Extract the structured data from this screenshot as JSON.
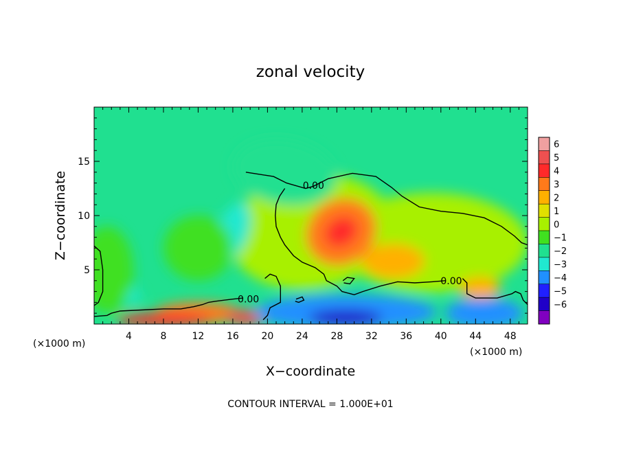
{
  "chart_data": {
    "type": "heatmap",
    "title": "zonal velocity",
    "xlabel": "X−coordinate",
    "ylabel": "Z−coordinate",
    "x_unit_left": "(×1000 m)",
    "x_unit_right": "(×1000 m)",
    "footer": "CONTOUR INTERVAL = 1.000E+01",
    "xlim": [
      0,
      50
    ],
    "ylim": [
      0,
      20
    ],
    "x_ticks": [
      4,
      8,
      12,
      16,
      20,
      24,
      28,
      32,
      36,
      40,
      44,
      48
    ],
    "x_tick_labels": [
      "4",
      "8",
      "12",
      "16",
      "20",
      "24",
      "28",
      "32",
      "36",
      "40",
      "44",
      "48"
    ],
    "y_ticks": [
      5,
      10,
      15
    ],
    "y_tick_labels": [
      "5",
      "10",
      "15"
    ],
    "colorbar": {
      "levels": [
        6,
        5,
        4,
        3,
        2,
        1,
        0,
        -1,
        -2,
        -3,
        -4,
        -5,
        -6
      ],
      "labels": [
        "6",
        "5",
        "4",
        "3",
        "2",
        "1",
        "0",
        "−1",
        "−2",
        "−3",
        "−4",
        "−5",
        "−6"
      ],
      "colors": [
        "#f0a0a0",
        "#ee5050",
        "#ff2a2a",
        "#ff7a1a",
        "#ffb000",
        "#e0e000",
        "#a8f000",
        "#40e020",
        "#20e090",
        "#20e8d0",
        "#2090ff",
        "#2020ff",
        "#2000c8",
        "#8000c0"
      ]
    },
    "contour_labels": [
      {
        "text": "0.00",
        "x": 25.3,
        "y": 12.8
      },
      {
        "text": "0.00",
        "x": 17.8,
        "y": 2.3
      },
      {
        "text": "0.00",
        "x": 41.2,
        "y": 4.0
      }
    ],
    "background_value": -1.3,
    "blobs": [
      {
        "x": 25,
        "y": 8.5,
        "rx": 9.5,
        "ry": 5.3,
        "v": 0.6,
        "rot": -8
      },
      {
        "x": 39,
        "y": 7.5,
        "rx": 11,
        "ry": 4.6,
        "v": 0.45,
        "rot": 0
      },
      {
        "x": 28.5,
        "y": 8.5,
        "rx": 4.2,
        "ry": 3.0,
        "v": 3.5,
        "rot": -35
      },
      {
        "x": 28.5,
        "y": 8.5,
        "rx": 2.0,
        "ry": 1.3,
        "v": 5.0,
        "rot": -35
      },
      {
        "x": 34.5,
        "y": 5.8,
        "rx": 3.6,
        "ry": 1.6,
        "v": 2.5,
        "rot": 0
      },
      {
        "x": 44.5,
        "y": 3.3,
        "rx": 2.4,
        "ry": 1.0,
        "v": 2.8,
        "rot": 0
      },
      {
        "x": 12,
        "y": 1.0,
        "rx": 5,
        "ry": 1.0,
        "v": 3.5,
        "rot": 0
      },
      {
        "x": 8,
        "y": 0.4,
        "rx": 5.5,
        "ry": 0.6,
        "v": 4.6,
        "rot": 0
      },
      {
        "x": 17.5,
        "y": 0.6,
        "rx": 2.2,
        "ry": 0.7,
        "v": 5.4,
        "rot": 0
      },
      {
        "x": 29,
        "y": 1.1,
        "rx": 10.5,
        "ry": 1.6,
        "v": -3.5,
        "rot": 0
      },
      {
        "x": 29,
        "y": 0.6,
        "rx": 4.2,
        "ry": 0.7,
        "v": -5.5,
        "rot": 0
      },
      {
        "x": 45,
        "y": 1.0,
        "rx": 4.5,
        "ry": 1.4,
        "v": -3.0,
        "rot": 0
      },
      {
        "x": 16,
        "y": 8.5,
        "rx": 1.8,
        "ry": 2.8,
        "v": -2.0,
        "rot": 20
      },
      {
        "x": 3.8,
        "y": 2.6,
        "rx": 1.6,
        "ry": 0.7,
        "v": -2.5,
        "rot": 0
      },
      {
        "x": 12,
        "y": 7,
        "rx": 4,
        "ry": 3,
        "v": -0.2,
        "rot": 0
      },
      {
        "x": 1.5,
        "y": 5,
        "rx": 3,
        "ry": 4,
        "v": -0.5,
        "rot": 0
      },
      {
        "x": 22,
        "y": 14,
        "rx": 6,
        "ry": 3,
        "v": -1.8,
        "rot": 10
      }
    ],
    "contour_zero": [
      [
        [
          17.5,
          14.0
        ],
        [
          20.7,
          13.6
        ],
        [
          22.2,
          13.0
        ],
        [
          24.4,
          12.5
        ],
        [
          25.3,
          12.7
        ],
        [
          27.0,
          13.4
        ],
        [
          29.8,
          13.9
        ],
        [
          32.5,
          13.6
        ],
        [
          34.3,
          12.6
        ],
        [
          35.5,
          11.8
        ],
        [
          37.5,
          10.8
        ],
        [
          40.0,
          10.4
        ],
        [
          42.5,
          10.2
        ],
        [
          45.0,
          9.8
        ],
        [
          47.0,
          9.0
        ],
        [
          48.5,
          8.1
        ],
        [
          49.3,
          7.5
        ],
        [
          50.0,
          7.3
        ]
      ],
      [
        [
          22.0,
          12.5
        ],
        [
          21.4,
          11.8
        ],
        [
          21.0,
          11.0
        ],
        [
          20.9,
          10.0
        ],
        [
          21.0,
          9.0
        ],
        [
          21.5,
          8.0
        ],
        [
          22.0,
          7.3
        ],
        [
          23.0,
          6.3
        ],
        [
          24.0,
          5.7
        ],
        [
          25.5,
          5.2
        ],
        [
          26.5,
          4.6
        ],
        [
          26.8,
          4.0
        ],
        [
          28.0,
          3.5
        ],
        [
          28.6,
          3.0
        ],
        [
          30.0,
          2.7
        ],
        [
          31.0,
          3.0
        ],
        [
          33.0,
          3.5
        ],
        [
          35.0,
          3.9
        ],
        [
          37.0,
          3.8
        ],
        [
          39.0,
          3.9
        ],
        [
          40.5,
          4.0
        ]
      ],
      [
        [
          42.5,
          4.2
        ],
        [
          43.0,
          3.8
        ],
        [
          43.0,
          2.8
        ],
        [
          44.0,
          2.4
        ],
        [
          46.5,
          2.4
        ],
        [
          48.2,
          2.8
        ],
        [
          48.6,
          3.0
        ],
        [
          49.2,
          2.8
        ],
        [
          49.5,
          2.2
        ],
        [
          50.0,
          1.8
        ]
      ],
      [
        [
          0.0,
          7.2
        ],
        [
          0.7,
          6.7
        ],
        [
          1.0,
          5.0
        ],
        [
          1.0,
          3.0
        ],
        [
          0.5,
          2.0
        ],
        [
          0.0,
          1.7
        ]
      ],
      [
        [
          0.0,
          0.7
        ],
        [
          1.5,
          0.8
        ],
        [
          2.0,
          1.0
        ],
        [
          3.0,
          1.2
        ],
        [
          5.5,
          1.3
        ],
        [
          8.0,
          1.4
        ],
        [
          10.0,
          1.4
        ],
        [
          11.5,
          1.6
        ],
        [
          12.5,
          1.8
        ],
        [
          13.2,
          2.0
        ],
        [
          14.0,
          2.1
        ],
        [
          15.0,
          2.2
        ],
        [
          16.0,
          2.3
        ],
        [
          17.2,
          2.4
        ]
      ],
      [
        [
          19.7,
          4.2
        ],
        [
          20.3,
          4.6
        ],
        [
          21.0,
          4.4
        ],
        [
          21.5,
          3.5
        ],
        [
          21.5,
          2.0
        ],
        [
          20.3,
          1.5
        ],
        [
          20.0,
          0.8
        ],
        [
          19.5,
          0.4
        ]
      ],
      [
        [
          28.7,
          4.0
        ],
        [
          29.2,
          4.3
        ],
        [
          30.0,
          4.2
        ],
        [
          29.5,
          3.7
        ],
        [
          28.8,
          3.8
        ]
      ],
      [
        [
          23.3,
          2.3
        ],
        [
          24.0,
          2.5
        ],
        [
          24.2,
          2.2
        ],
        [
          23.6,
          2.0
        ],
        [
          23.2,
          2.1
        ]
      ]
    ]
  }
}
